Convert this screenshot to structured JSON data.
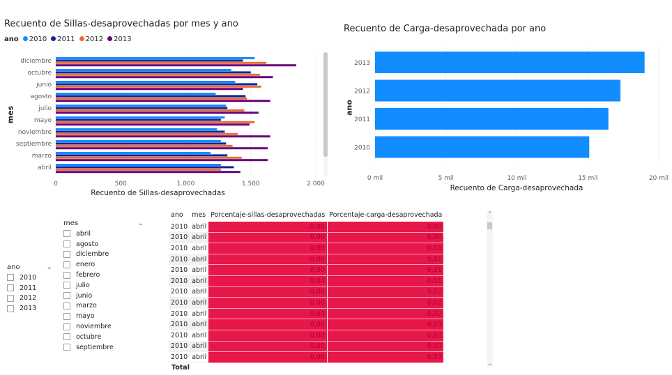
{
  "chart1": {
    "title": "Recuento de Sillas-desaprovechadas por mes y ano",
    "legend_title": "ano",
    "ylabel": "mes",
    "xlabel": "Recuento de Sillas-desaprovechadas",
    "xticks": [
      "0",
      "500",
      "1.000",
      "1.500",
      "2.000"
    ]
  },
  "chart2": {
    "title": "Recuento de Carga-desaprovechada por ano",
    "ylabel": "ano",
    "xlabel": "Recuento de Carga-desaprovechada",
    "xticks": [
      "0 mil",
      "5 mil",
      "10 mil",
      "15 mil",
      "20 mil"
    ]
  },
  "chart_data": [
    {
      "type": "bar",
      "orientation": "horizontal",
      "title": "Recuento de Sillas-desaprovechadas por mes y ano",
      "xlabel": "Recuento de Sillas-desaprovechadas",
      "ylabel": "mes",
      "legend_title": "ano",
      "legend_position": "top-left",
      "xlim": [
        0,
        2000
      ],
      "categories": [
        "diciembre",
        "octubre",
        "junio",
        "agosto",
        "julio",
        "mayo",
        "noviembre",
        "septiembre",
        "marzo",
        "abril"
      ],
      "series": [
        {
          "name": "2010",
          "color": "#118dff",
          "values": [
            1530,
            1350,
            1380,
            1230,
            1310,
            1300,
            1240,
            1270,
            1190,
            1270
          ]
        },
        {
          "name": "2011",
          "color": "#12239e",
          "values": [
            1440,
            1500,
            1550,
            1460,
            1320,
            1270,
            1300,
            1310,
            1320,
            1370
          ]
        },
        {
          "name": "2012",
          "color": "#e66c37",
          "values": [
            1620,
            1570,
            1580,
            1470,
            1450,
            1530,
            1400,
            1360,
            1430,
            1270
          ]
        },
        {
          "name": "2013",
          "color": "#6b007b",
          "values": [
            1850,
            1670,
            1440,
            1650,
            1560,
            1490,
            1650,
            1630,
            1630,
            1420
          ]
        }
      ]
    },
    {
      "type": "bar",
      "orientation": "horizontal",
      "title": "Recuento de Carga-desaprovechada por ano",
      "xlabel": "Recuento de Carga-desaprovechada",
      "ylabel": "ano",
      "xlim": [
        0,
        20000
      ],
      "categories": [
        "2013",
        "2012",
        "2011",
        "2010"
      ],
      "color": "#118dff",
      "values": [
        19000,
        17300,
        16450,
        15100
      ]
    }
  ],
  "slicer_mes": {
    "title": "mes",
    "items": [
      "abril",
      "agosto",
      "diciembre",
      "enero",
      "febrero",
      "julio",
      "junio",
      "marzo",
      "mayo",
      "noviembre",
      "octubre",
      "septiembre"
    ]
  },
  "slicer_ano": {
    "title": "ano",
    "items": [
      "2010",
      "2011",
      "2012",
      "2013"
    ]
  },
  "matrix": {
    "headers": [
      "ano",
      "mes",
      "Porcentaje-sillas-desaprovechadas",
      "Porcentaje-carga-desaprovechada"
    ],
    "rows": [
      [
        "2010",
        "abril",
        "0,00",
        "0,00"
      ],
      [
        "2010",
        "abril",
        "0,00",
        "0,00"
      ],
      [
        "2010",
        "abril",
        "0,00",
        "0,01"
      ],
      [
        "2010",
        "abril",
        "0,00",
        "0,01"
      ],
      [
        "2010",
        "abril",
        "0,00",
        "0,01"
      ],
      [
        "2010",
        "abril",
        "0,00",
        "0,01"
      ],
      [
        "2010",
        "abril",
        "0,00",
        "0,02"
      ],
      [
        "2010",
        "abril",
        "0,00",
        "0,02"
      ],
      [
        "2010",
        "abril",
        "0,00",
        "0,02"
      ],
      [
        "2010",
        "abril",
        "0,00",
        "0,03"
      ],
      [
        "2010",
        "abril",
        "0,00",
        "0,03"
      ],
      [
        "2010",
        "abril",
        "0,00",
        "0,03"
      ],
      [
        "2010",
        "abril",
        "0,00",
        "0,03"
      ]
    ],
    "total_label": "Total"
  }
}
